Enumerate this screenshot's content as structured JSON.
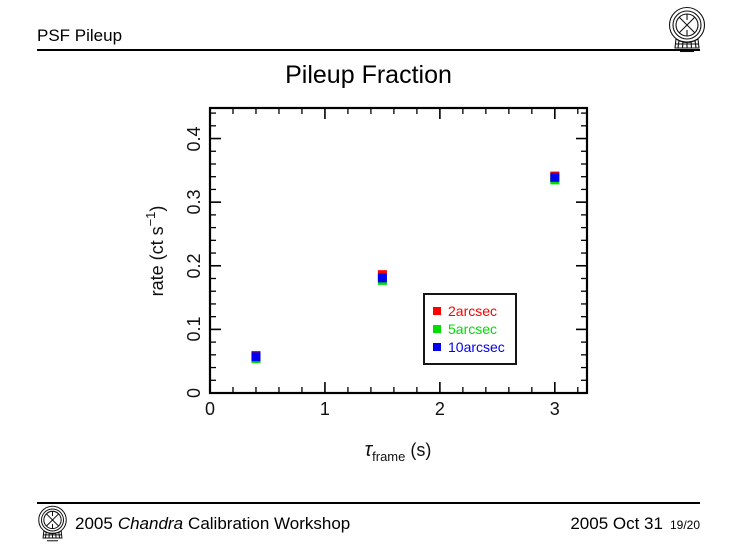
{
  "header": {
    "title": "PSF Pileup",
    "logo": "chandra-emblem"
  },
  "slide_title": "Pileup Fraction",
  "chart_data": {
    "type": "scatter",
    "title": "Pileup Fraction",
    "xlabel_tau": "τ",
    "xlabel_sub": "frame",
    "xlabel_unit": " (s)",
    "ylabel_pre": "rate (ct s",
    "ylabel_sup": "−1",
    "ylabel_post": ")",
    "xlim": [
      0,
      3.28
    ],
    "ylim": [
      0,
      0.448
    ],
    "x_major_ticks": [
      0,
      1,
      2,
      3
    ],
    "x_minor_step": 0.2,
    "y_major_ticks": [
      0,
      0.1,
      0.2,
      0.3,
      0.4
    ],
    "y_minor_step": 0.02,
    "grid": false,
    "legend_position": "inside lower-right",
    "marker": "square",
    "x": [
      0.4,
      1.5,
      3.0
    ],
    "series": [
      {
        "name": "2arcsec",
        "color": "#ff0000",
        "values": [
          0.059,
          0.186,
          0.341
        ]
      },
      {
        "name": "5arcsec",
        "color": "#00dd00",
        "values": [
          0.054,
          0.177,
          0.335
        ]
      },
      {
        "name": "10arcsec",
        "color": "#0000ee",
        "values": [
          0.057,
          0.181,
          0.339
        ]
      }
    ]
  },
  "footer": {
    "left_year": "2005",
    "left_italic": "Chandra",
    "left_rest": "Calibration Workshop",
    "right_date": "2005 Oct 31",
    "page": "19/20"
  }
}
